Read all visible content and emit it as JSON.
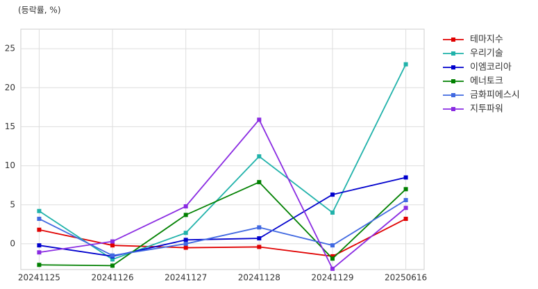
{
  "chart_data": {
    "type": "line",
    "y_label": "(등락률, %)",
    "categories": [
      "20241125",
      "20241126",
      "20241127",
      "20241128",
      "20241129",
      "20250616"
    ],
    "series": [
      {
        "name": "테마지수",
        "color": "#e00000",
        "values": [
          1.8,
          -0.2,
          -0.5,
          -0.4,
          -1.6,
          3.2
        ]
      },
      {
        "name": "우리기술",
        "color": "#20b2aa",
        "values": [
          4.2,
          -2.0,
          1.4,
          11.2,
          4.0,
          23.0
        ]
      },
      {
        "name": "이엠코리아",
        "color": "#0000cd",
        "values": [
          -0.2,
          -1.6,
          0.5,
          0.7,
          6.3,
          8.5
        ]
      },
      {
        "name": "에너토크",
        "color": "#008000",
        "values": [
          -2.7,
          -2.8,
          3.7,
          7.9,
          -1.9,
          7.0
        ]
      },
      {
        "name": "금화피에스시",
        "color": "#4169e1",
        "values": [
          3.2,
          -1.5,
          0.0,
          2.1,
          -0.2,
          5.6
        ]
      },
      {
        "name": "지투파워",
        "color": "#8a2be2",
        "values": [
          -1.1,
          0.3,
          4.8,
          15.9,
          -3.2,
          4.6
        ]
      }
    ],
    "ylim": [
      -3.3,
      27.5
    ],
    "yticks": [
      0,
      5,
      10,
      15,
      20,
      25
    ],
    "grid": true,
    "legend": "outside right"
  }
}
